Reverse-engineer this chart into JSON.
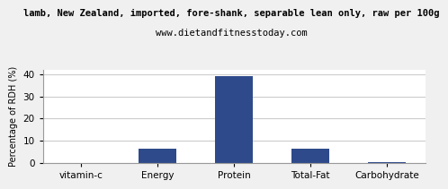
{
  "title_line1": "lamb, New Zealand, imported, fore-shank, separable lean only, raw per 100g",
  "title_line2": "www.dietandfitnesstoday.com",
  "categories": [
    "vitamin-c",
    "Energy",
    "Protein",
    "Total-Fat",
    "Carbohydrate"
  ],
  "values": [
    0,
    6.5,
    39,
    6.5,
    0.5
  ],
  "bar_color": "#2e4a8a",
  "ylabel": "Percentage of RDH (%)",
  "ylim": [
    0,
    42
  ],
  "yticks": [
    0,
    10,
    20,
    30,
    40
  ],
  "background_color": "#f0f0f0",
  "plot_bg_color": "#ffffff",
  "grid_color": "#cccccc",
  "title_fontsize": 7.5,
  "subtitle_fontsize": 7.5,
  "ylabel_fontsize": 7,
  "tick_fontsize": 7.5
}
